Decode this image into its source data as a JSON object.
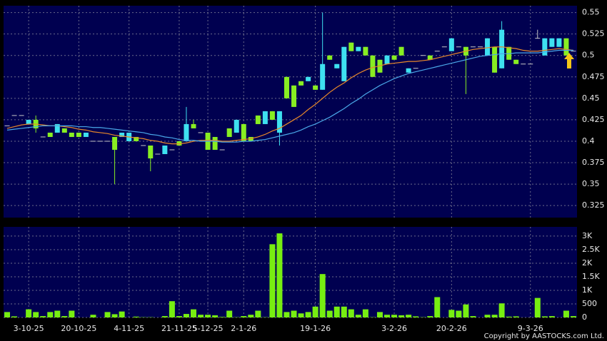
{
  "chart_data": [
    {
      "type": "candlestick",
      "categories": [
        null,
        null,
        null,
        "3-10-25",
        null,
        null,
        null,
        null,
        null,
        null,
        "20-10-25",
        null,
        null,
        null,
        null,
        null,
        null,
        "4-11-25",
        null,
        null,
        null,
        null,
        null,
        null,
        "21-11-25",
        null,
        null,
        null,
        "5-12-25",
        null,
        null,
        null,
        null,
        "2-1-26",
        null,
        null,
        null,
        null,
        null,
        null,
        null,
        null,
        null,
        "19-1-26",
        null,
        null,
        null,
        null,
        null,
        null,
        null,
        null,
        null,
        null,
        "3-2-26",
        null,
        null,
        null,
        null,
        null,
        null,
        null,
        "20-2-26",
        null,
        null,
        null,
        null,
        null,
        null,
        null,
        null,
        null,
        null,
        "9-3-26",
        null,
        null,
        null,
        null,
        null,
        null
      ],
      "ohlc": [
        [
          0.418,
          0.418,
          0.418,
          0.418
        ],
        [
          0.43,
          0.43,
          0.43,
          0.43
        ],
        [
          0.43,
          0.43,
          0.43,
          0.43
        ],
        [
          0.42,
          0.425,
          0.42,
          0.425
        ],
        [
          0.425,
          0.43,
          0.41,
          0.415
        ],
        [
          0.405,
          0.405,
          0.405,
          0.405
        ],
        [
          0.41,
          0.41,
          0.405,
          0.405
        ],
        [
          0.41,
          0.42,
          0.41,
          0.42
        ],
        [
          0.415,
          0.415,
          0.41,
          0.41
        ],
        [
          0.41,
          0.41,
          0.405,
          0.405
        ],
        [
          0.41,
          0.41,
          0.405,
          0.405
        ],
        [
          0.405,
          0.41,
          0.405,
          0.41
        ],
        [
          0.4,
          0.4,
          0.4,
          0.4
        ],
        [
          0.4,
          0.4,
          0.4,
          0.4
        ],
        [
          0.4,
          0.4,
          0.4,
          0.4
        ],
        [
          0.405,
          0.405,
          0.35,
          0.39
        ],
        [
          0.405,
          0.41,
          0.405,
          0.41
        ],
        [
          0.4,
          0.41,
          0.4,
          0.41
        ],
        [
          0.405,
          0.405,
          0.4,
          0.4
        ],
        [
          0.395,
          0.395,
          0.395,
          0.395
        ],
        [
          0.395,
          0.395,
          0.365,
          0.38
        ],
        [
          0.385,
          0.385,
          0.385,
          0.385
        ],
        [
          0.385,
          0.395,
          0.385,
          0.395
        ],
        [
          0.39,
          0.39,
          0.39,
          0.39
        ],
        [
          0.4,
          0.4,
          0.395,
          0.395
        ],
        [
          0.4,
          0.44,
          0.4,
          0.42
        ],
        [
          0.42,
          0.425,
          0.415,
          0.415
        ],
        [
          0.41,
          0.41,
          0.41,
          0.41
        ],
        [
          0.41,
          0.41,
          0.39,
          0.39
        ],
        [
          0.405,
          0.405,
          0.39,
          0.39
        ],
        [
          0.39,
          0.39,
          0.39,
          0.39
        ],
        [
          0.415,
          0.415,
          0.405,
          0.405
        ],
        [
          0.41,
          0.425,
          0.41,
          0.425
        ],
        [
          0.42,
          0.42,
          0.4,
          0.4
        ],
        [
          0.405,
          0.405,
          0.4,
          0.4
        ],
        [
          0.43,
          0.43,
          0.42,
          0.42
        ],
        [
          0.42,
          0.435,
          0.42,
          0.435
        ],
        [
          0.435,
          0.435,
          0.425,
          0.425
        ],
        [
          0.41,
          0.435,
          0.395,
          0.435
        ],
        [
          0.475,
          0.475,
          0.45,
          0.45
        ],
        [
          0.465,
          0.465,
          0.44,
          0.44
        ],
        [
          0.47,
          0.47,
          0.465,
          0.465
        ],
        [
          0.47,
          0.475,
          0.47,
          0.475
        ],
        [
          0.465,
          0.465,
          0.46,
          0.46
        ],
        [
          0.46,
          0.55,
          0.46,
          0.49
        ],
        [
          0.5,
          0.5,
          0.495,
          0.495
        ],
        [
          0.485,
          0.49,
          0.485,
          0.49
        ],
        [
          0.47,
          0.51,
          0.47,
          0.51
        ],
        [
          0.515,
          0.515,
          0.505,
          0.505
        ],
        [
          0.505,
          0.51,
          0.505,
          0.51
        ],
        [
          0.51,
          0.51,
          0.5,
          0.5
        ],
        [
          0.5,
          0.5,
          0.475,
          0.475
        ],
        [
          0.495,
          0.495,
          0.48,
          0.48
        ],
        [
          0.49,
          0.5,
          0.49,
          0.5
        ],
        [
          0.5,
          0.5,
          0.495,
          0.495
        ],
        [
          0.51,
          0.51,
          0.5,
          0.5
        ],
        [
          0.48,
          0.485,
          0.48,
          0.485
        ],
        [
          0.485,
          0.485,
          0.485,
          0.485
        ],
        [
          0.5,
          0.5,
          0.5,
          0.5
        ],
        [
          0.5,
          0.5,
          0.495,
          0.495
        ],
        [
          0.505,
          0.505,
          0.505,
          0.505
        ],
        [
          0.51,
          0.51,
          0.51,
          0.51
        ],
        [
          0.505,
          0.52,
          0.505,
          0.52
        ],
        [
          0.51,
          0.51,
          0.51,
          0.51
        ],
        [
          0.51,
          0.51,
          0.455,
          0.5
        ],
        [
          0.51,
          0.51,
          0.51,
          0.51
        ],
        [
          0.51,
          0.51,
          0.51,
          0.51
        ],
        [
          0.5,
          0.52,
          0.5,
          0.52
        ],
        [
          0.51,
          0.51,
          0.48,
          0.48
        ],
        [
          0.485,
          0.54,
          0.485,
          0.53
        ],
        [
          0.51,
          0.51,
          0.495,
          0.495
        ],
        [
          0.495,
          0.495,
          0.49,
          0.49
        ],
        [
          0.49,
          0.49,
          0.49,
          0.49
        ],
        [
          0.49,
          0.49,
          0.49,
          0.49
        ],
        [
          0.52,
          0.53,
          0.52,
          0.52
        ],
        [
          0.5,
          0.52,
          0.5,
          0.52
        ],
        [
          0.51,
          0.52,
          0.51,
          0.52
        ],
        [
          0.51,
          0.52,
          0.51,
          0.52
        ],
        [
          0.52,
          0.52,
          0.5,
          0.5
        ],
        [
          0.505,
          0.505,
          0.505,
          0.505
        ]
      ],
      "up_color": "#3ee0f0",
      "down_color": "#88ee22",
      "flat_color": "#c8c8c8",
      "series": [
        {
          "color": "#e8882a",
          "values": [
            0.415,
            0.417,
            0.419,
            0.42,
            0.42,
            0.419,
            0.418,
            0.418,
            0.417,
            0.416,
            0.414,
            0.413,
            0.411,
            0.41,
            0.409,
            0.407,
            0.406,
            0.405,
            0.404,
            0.403,
            0.401,
            0.4,
            0.398,
            0.397,
            0.397,
            0.398,
            0.4,
            0.401,
            0.401,
            0.401,
            0.4,
            0.4,
            0.401,
            0.402,
            0.403,
            0.405,
            0.408,
            0.412,
            0.415,
            0.42,
            0.425,
            0.43,
            0.437,
            0.443,
            0.45,
            0.457,
            0.463,
            0.468,
            0.474,
            0.479,
            0.483,
            0.486,
            0.488,
            0.49,
            0.491,
            0.492,
            0.493,
            0.493,
            0.494,
            0.495,
            0.497,
            0.499,
            0.501,
            0.503,
            0.505,
            0.507,
            0.508,
            0.509,
            0.51,
            0.51,
            0.509,
            0.508,
            0.506,
            0.505,
            0.505,
            0.506,
            0.507,
            0.508,
            0.507,
            0.506
          ]
        },
        {
          "color": "#4aa8e8",
          "values": [
            0.413,
            0.414,
            0.415,
            0.416,
            0.417,
            0.418,
            0.418,
            0.418,
            0.418,
            0.418,
            0.417,
            0.417,
            0.416,
            0.416,
            0.415,
            0.414,
            0.413,
            0.412,
            0.411,
            0.41,
            0.408,
            0.407,
            0.405,
            0.404,
            0.402,
            0.401,
            0.401,
            0.4,
            0.4,
            0.4,
            0.399,
            0.399,
            0.399,
            0.4,
            0.4,
            0.401,
            0.402,
            0.404,
            0.406,
            0.408,
            0.41,
            0.413,
            0.417,
            0.42,
            0.424,
            0.428,
            0.433,
            0.438,
            0.444,
            0.449,
            0.455,
            0.46,
            0.465,
            0.469,
            0.473,
            0.476,
            0.479,
            0.481,
            0.483,
            0.485,
            0.487,
            0.489,
            0.491,
            0.493,
            0.495,
            0.497,
            0.499,
            0.5,
            0.501,
            0.502,
            0.502,
            0.503,
            0.503,
            0.503,
            0.503,
            0.504,
            0.505,
            0.506,
            0.506,
            0.506
          ]
        }
      ],
      "ylim": [
        0.311,
        0.558
      ],
      "yticks": [
        0.325,
        0.35,
        0.375,
        0.4,
        0.425,
        0.45,
        0.475,
        0.5,
        0.525,
        0.55
      ],
      "grid": true
    },
    {
      "type": "bar",
      "values": [
        200,
        40,
        0,
        300,
        200,
        50,
        200,
        250,
        50,
        250,
        0,
        0,
        100,
        0,
        200,
        120,
        220,
        0,
        30,
        10,
        10,
        0,
        50,
        600,
        50,
        130,
        300,
        100,
        100,
        80,
        20,
        250,
        10,
        50,
        100,
        250,
        10,
        2700,
        3100,
        200,
        250,
        150,
        200,
        400,
        1600,
        250,
        400,
        400,
        300,
        100,
        300,
        10,
        200,
        100,
        100,
        80,
        100,
        40,
        10,
        50,
        750,
        0,
        280,
        250,
        480,
        50,
        0,
        100,
        100,
        520,
        30,
        40,
        0,
        0,
        720,
        40,
        50,
        0,
        250,
        50
      ],
      "color": "#77ee11",
      "ylim": [
        0,
        3340
      ],
      "yticks": [
        0,
        500,
        {
          "value": 1000,
          "label": "1K"
        },
        {
          "value": 1500,
          "label": "1.5K"
        },
        {
          "value": 2000,
          "label": "2K"
        },
        {
          "value": 2500,
          "label": "2.5K"
        },
        {
          "value": 3000,
          "label": "3K"
        }
      ],
      "grid": true
    }
  ],
  "footer": {
    "copyright": "Copyright by AASTOCKS.com Ltd."
  }
}
